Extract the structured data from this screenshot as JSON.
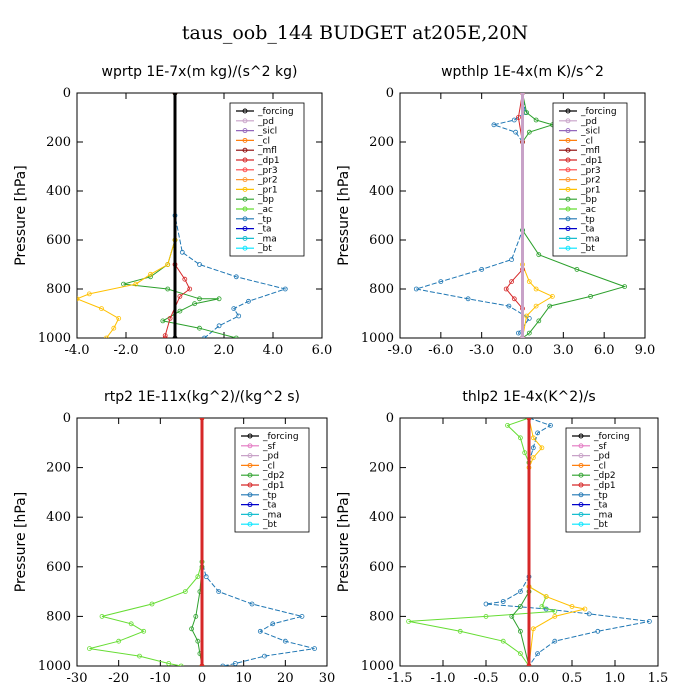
{
  "figure_title": "taus_oob_144  BUDGET at205E,20N",
  "chart_data": [
    {
      "type": "line",
      "title": "wprtp  1E-7x(m kg)/(s^2 kg)",
      "ylabel": "Pressure [hPa]",
      "xlabel": "",
      "xlim": [
        -4.0,
        6.0
      ],
      "ylim": [
        1000,
        0
      ],
      "xticks": [
        "-4.0",
        "-2.0",
        "0.0",
        "2.0",
        "4.0",
        "6.0"
      ],
      "yticks": [
        "0",
        "200",
        "400",
        "600",
        "800",
        "1000"
      ],
      "legend_position": "top-right",
      "legend": [
        "_forcing",
        "_pd",
        "_sicl",
        "_cl",
        "_mfl",
        "_dp1",
        "_pr3",
        "_pr2",
        "_pr1",
        "_bp",
        "_ac",
        "_tp",
        "_ta",
        "_ma",
        "_bt"
      ],
      "series": [
        {
          "name": "_tp",
          "color": "#1f77b4",
          "points": [
            [
              0,
              0
            ],
            [
              0,
              500
            ],
            [
              0.3,
              650
            ],
            [
              1.0,
              700
            ],
            [
              2.5,
              750
            ],
            [
              4.5,
              800
            ],
            [
              3.0,
              850
            ],
            [
              2.4,
              880
            ],
            [
              2.6,
              910
            ],
            [
              1.8,
              950
            ],
            [
              1.2,
              1000
            ]
          ]
        },
        {
          "name": "_bp",
          "color": "#2ca02c",
          "points": [
            [
              0,
              0
            ],
            [
              0,
              600
            ],
            [
              -0.3,
              700
            ],
            [
              -1.0,
              750
            ],
            [
              -2.1,
              780
            ],
            [
              -0.3,
              800
            ],
            [
              1.0,
              840
            ],
            [
              1.8,
              840
            ],
            [
              0.8,
              860
            ],
            [
              0.2,
              890
            ],
            [
              -0.5,
              930
            ],
            [
              1.0,
              960
            ],
            [
              2.5,
              1000
            ]
          ]
        },
        {
          "name": "_pr1",
          "color": "#ffc000",
          "points": [
            [
              0,
              0
            ],
            [
              0,
              600
            ],
            [
              -0.3,
              700
            ],
            [
              -1.0,
              740
            ],
            [
              -1.6,
              780
            ],
            [
              -3.5,
              820
            ],
            [
              -4.0,
              840
            ],
            [
              -3.0,
              880
            ],
            [
              -2.3,
              920
            ],
            [
              -2.5,
              960
            ],
            [
              -2.8,
              1000
            ]
          ]
        },
        {
          "name": "_dp1",
          "color": "#d62728",
          "points": [
            [
              0,
              0
            ],
            [
              0,
              700
            ],
            [
              0.4,
              760
            ],
            [
              0.6,
              800
            ],
            [
              0.2,
              830
            ],
            [
              -0.2,
              920
            ],
            [
              -0.4,
              990
            ],
            [
              -0.4,
              1000
            ]
          ]
        },
        {
          "name": "_forcing",
          "color": "#000000",
          "points": [
            [
              0,
              0
            ],
            [
              0,
              1000
            ]
          ]
        }
      ]
    },
    {
      "type": "line",
      "title": "wpthlp  1E-4x(m K)/s^2",
      "ylabel": "Pressure [hPa]",
      "xlabel": "",
      "xlim": [
        -9.0,
        9.0
      ],
      "ylim": [
        1000,
        0
      ],
      "xticks": [
        "-9.0",
        "-6.0",
        "-3.0",
        "0.0",
        "3.0",
        "6.0",
        "9.0"
      ],
      "yticks": [
        "0",
        "200",
        "400",
        "600",
        "800",
        "1000"
      ],
      "legend_position": "top-right",
      "legend": [
        "_forcing",
        "_pd",
        "_sicl",
        "_cl",
        "_mfl",
        "_dp1",
        "_pr3",
        "_pr2",
        "_pr1",
        "_bp",
        "_ac",
        "_tp",
        "_ta",
        "_ma",
        "_bt"
      ],
      "series": [
        {
          "name": "_tp",
          "color": "#1f77b4",
          "points": [
            [
              0,
              0
            ],
            [
              0.2,
              80
            ],
            [
              -0.6,
              110
            ],
            [
              -2.1,
              130
            ],
            [
              -0.5,
              160
            ],
            [
              0,
              200
            ],
            [
              0,
              560
            ],
            [
              -0.8,
              680
            ],
            [
              -3.0,
              720
            ],
            [
              -6.0,
              770
            ],
            [
              -7.8,
              800
            ],
            [
              -4.0,
              840
            ],
            [
              -1.0,
              870
            ],
            [
              0.5,
              920
            ],
            [
              -0.3,
              980
            ],
            [
              0,
              1000
            ]
          ]
        },
        {
          "name": "_bp",
          "color": "#2ca02c",
          "points": [
            [
              0,
              0
            ],
            [
              0.3,
              80
            ],
            [
              1.0,
              110
            ],
            [
              2.2,
              130
            ],
            [
              0.5,
              160
            ],
            [
              0,
              200
            ],
            [
              0,
              560
            ],
            [
              1.2,
              660
            ],
            [
              4.0,
              720
            ],
            [
              7.5,
              790
            ],
            [
              5.0,
              830
            ],
            [
              2.0,
              870
            ],
            [
              1.2,
              930
            ],
            [
              0.5,
              980
            ],
            [
              0,
              1000
            ]
          ]
        },
        {
          "name": "_pr1",
          "color": "#ffc000",
          "points": [
            [
              0,
              0
            ],
            [
              0,
              700
            ],
            [
              0.5,
              770
            ],
            [
              1.0,
              800
            ],
            [
              2.2,
              830
            ],
            [
              1.0,
              870
            ],
            [
              0.3,
              910
            ],
            [
              0,
              1000
            ]
          ]
        },
        {
          "name": "_dp1",
          "color": "#d62728",
          "points": [
            [
              0,
              0
            ],
            [
              -0.3,
              100
            ],
            [
              0,
              200
            ],
            [
              0,
              720
            ],
            [
              -0.8,
              770
            ],
            [
              -1.2,
              800
            ],
            [
              -0.6,
              840
            ],
            [
              0,
              880
            ],
            [
              0,
              1000
            ]
          ]
        },
        {
          "name": "_forcing",
          "color": "#c8a2c8",
          "points": [
            [
              0,
              0
            ],
            [
              0,
              1000
            ]
          ]
        }
      ]
    },
    {
      "type": "line",
      "title": "rtp2  1E-11x(kg^2)/(kg^2 s)",
      "ylabel": "Pressure [hPa]",
      "xlabel": "",
      "xlim": [
        -30,
        30
      ],
      "ylim": [
        1000,
        0
      ],
      "xticks": [
        "-30",
        "-20",
        "-10",
        "0",
        "10",
        "20",
        "30"
      ],
      "yticks": [
        "0",
        "200",
        "400",
        "600",
        "800",
        "1000"
      ],
      "legend_position": "top-right",
      "legend": [
        "_forcing",
        "_sf",
        "_pd",
        "_cl",
        "_dp2",
        "_dp1",
        "_tp",
        "_ta",
        "_ma",
        "_bt"
      ],
      "series": [
        {
          "name": "_tp",
          "color": "#1f77b4",
          "points": [
            [
              0,
              0
            ],
            [
              0,
              580
            ],
            [
              1.0,
              640
            ],
            [
              4.0,
              700
            ],
            [
              12.0,
              750
            ],
            [
              24.0,
              800
            ],
            [
              17.0,
              830
            ],
            [
              14.0,
              860
            ],
            [
              20.0,
              900
            ],
            [
              27.0,
              930
            ],
            [
              15.0,
              960
            ],
            [
              8.0,
              990
            ],
            [
              5.0,
              1000
            ]
          ]
        },
        {
          "name": "_dp2",
          "color": "#2ca02c",
          "points": [
            [
              0,
              0
            ],
            [
              0,
              600
            ],
            [
              -0.5,
              700
            ],
            [
              -1.5,
              800
            ],
            [
              -2.5,
              850
            ],
            [
              -1.0,
              900
            ],
            [
              -0.5,
              950
            ],
            [
              0,
              1000
            ]
          ]
        },
        {
          "name": "_dp1",
          "color": "#66dd33",
          "points": [
            [
              0,
              0
            ],
            [
              0,
              580
            ],
            [
              -1.0,
              640
            ],
            [
              -4.0,
              700
            ],
            [
              -12.0,
              750
            ],
            [
              -24.0,
              800
            ],
            [
              -17.0,
              830
            ],
            [
              -14.0,
              860
            ],
            [
              -20.0,
              900
            ],
            [
              -27.0,
              930
            ],
            [
              -15.0,
              960
            ],
            [
              -8.0,
              990
            ],
            [
              -5.0,
              1000
            ]
          ]
        },
        {
          "name": "_pd",
          "color": "#ffc000",
          "points": [
            [
              0,
              0
            ],
            [
              0,
              1000
            ]
          ]
        },
        {
          "name": "_forcing",
          "color": "#d62728",
          "points": [
            [
              0,
              0
            ],
            [
              0,
              1000
            ]
          ]
        }
      ]
    },
    {
      "type": "line",
      "title": "thlp2  1E-4x(K^2)/s",
      "ylabel": "Pressure [hPa]",
      "xlabel": "",
      "xlim": [
        -1.5,
        1.5
      ],
      "ylim": [
        1000,
        0
      ],
      "xticks": [
        "-1.5",
        "-1.0",
        "-0.5",
        "0.0",
        "0.5",
        "1.0",
        "1.5"
      ],
      "yticks": [
        "0",
        "200",
        "400",
        "600",
        "800",
        "1000"
      ],
      "legend_position": "top-right",
      "legend": [
        "_forcing",
        "_sf",
        "_pd",
        "_cl",
        "_dp2",
        "_dp1",
        "_tp",
        "_ta",
        "_ma",
        "_bt"
      ],
      "series": [
        {
          "name": "_tp",
          "color": "#1f77b4",
          "points": [
            [
              0,
              0
            ],
            [
              0.25,
              30
            ],
            [
              0.1,
              60
            ],
            [
              0.05,
              120
            ],
            [
              0,
              180
            ],
            [
              0,
              640
            ],
            [
              -0.1,
              700
            ],
            [
              -0.3,
              740
            ],
            [
              -0.5,
              750
            ],
            [
              0.2,
              770
            ],
            [
              0.7,
              790
            ],
            [
              1.4,
              820
            ],
            [
              0.8,
              860
            ],
            [
              0.3,
              900
            ],
            [
              0.1,
              950
            ],
            [
              0,
              1000
            ]
          ]
        },
        {
          "name": "_dp1",
          "color": "#66dd33",
          "points": [
            [
              0,
              0
            ],
            [
              -0.25,
              30
            ],
            [
              -0.1,
              80
            ],
            [
              -0.05,
              140
            ],
            [
              0,
              180
            ],
            [
              0,
              680
            ],
            [
              0.2,
              720
            ],
            [
              0.15,
              760
            ],
            [
              0.3,
              780
            ],
            [
              -0.5,
              800
            ],
            [
              -1.4,
              820
            ],
            [
              -0.8,
              860
            ],
            [
              -0.3,
              900
            ],
            [
              -0.1,
              950
            ],
            [
              0,
              1000
            ]
          ]
        },
        {
          "name": "_pd",
          "color": "#ffc000",
          "points": [
            [
              0,
              0
            ],
            [
              0.05,
              80
            ],
            [
              0.15,
              120
            ],
            [
              0.05,
              160
            ],
            [
              0,
              200
            ],
            [
              0,
              680
            ],
            [
              0.2,
              720
            ],
            [
              0.5,
              760
            ],
            [
              0.65,
              770
            ],
            [
              0.3,
              800
            ],
            [
              0.05,
              850
            ],
            [
              0,
              1000
            ]
          ]
        },
        {
          "name": "_dp2",
          "color": "#2ca02c",
          "points": [
            [
              0,
              0
            ],
            [
              0,
              700
            ],
            [
              -0.1,
              760
            ],
            [
              -0.2,
              800
            ],
            [
              -0.1,
              860
            ],
            [
              0,
              1000
            ]
          ]
        },
        {
          "name": "_forcing",
          "color": "#d62728",
          "points": [
            [
              0,
              0
            ],
            [
              0,
              1000
            ]
          ]
        }
      ]
    }
  ]
}
